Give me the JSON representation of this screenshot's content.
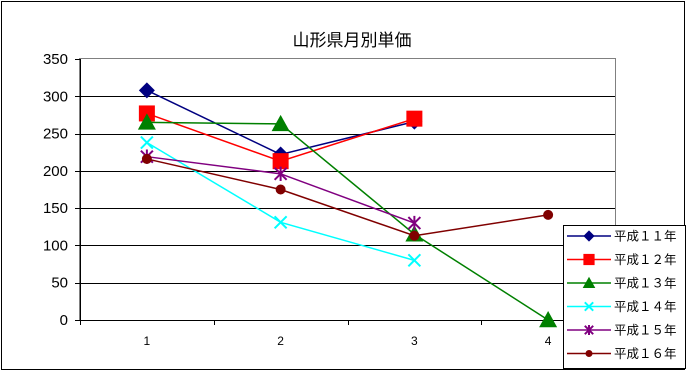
{
  "chart_data": {
    "type": "line",
    "title": "山形県月別単価",
    "xlabel": "",
    "ylabel": "",
    "categories": [
      "1",
      "2",
      "3",
      "4"
    ],
    "yticks": [
      "0",
      "50",
      "100",
      "150",
      "200",
      "250",
      "300",
      "350"
    ],
    "ylim": [
      0,
      350
    ],
    "grid": true,
    "legend_position": "right",
    "series": [
      {
        "name": "平成１１年",
        "color": "#000080",
        "marker": "diamond",
        "values": [
          308,
          222,
          266,
          null
        ]
      },
      {
        "name": "平成１２年",
        "color": "#ff0000",
        "marker": "square",
        "values": [
          277,
          213,
          270,
          null
        ]
      },
      {
        "name": "平成１３年",
        "color": "#008000",
        "marker": "triangle",
        "values": [
          265,
          263,
          115,
          0
        ]
      },
      {
        "name": "平成１４年",
        "color": "#00ffff",
        "marker": "x",
        "values": [
          238,
          131,
          80,
          null
        ]
      },
      {
        "name": "平成１５年",
        "color": "#800080",
        "marker": "star",
        "values": [
          219,
          196,
          130,
          null
        ]
      },
      {
        "name": "平成１６年",
        "color": "#800000",
        "marker": "circle",
        "values": [
          216,
          175,
          113,
          141
        ]
      }
    ]
  }
}
